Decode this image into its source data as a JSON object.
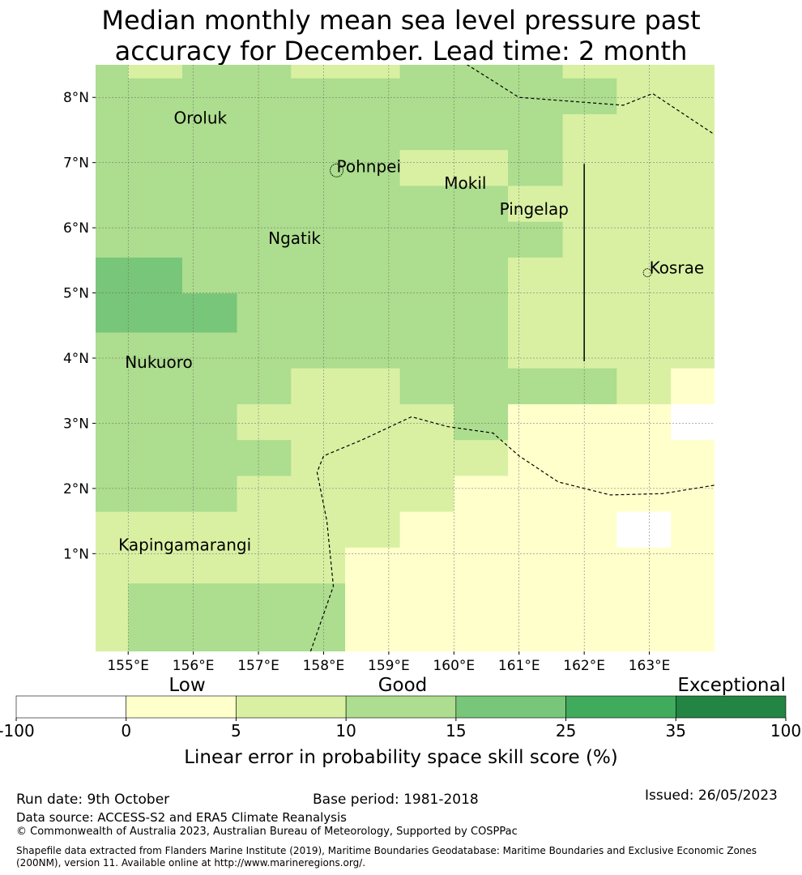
{
  "title": {
    "line1": "Median monthly mean sea level pressure past",
    "line2": "accuracy for December. Lead time: 2 month"
  },
  "map": {
    "lon_min": 154.5,
    "lon_max": 164.0,
    "lat_min": -0.5,
    "lat_max": 8.5,
    "lon_ticks": [
      155,
      156,
      157,
      158,
      159,
      160,
      161,
      162,
      163
    ],
    "lon_tick_labels": [
      "155°E",
      "156°E",
      "157°E",
      "158°E",
      "159°E",
      "160°E",
      "161°E",
      "162°E",
      "163°E"
    ],
    "lat_ticks": [
      1,
      2,
      3,
      4,
      5,
      6,
      7,
      8
    ],
    "lat_tick_labels": [
      "1°N",
      "2°N",
      "3°N",
      "4°N",
      "5°N",
      "6°N",
      "7°N",
      "8°N"
    ],
    "grid_lon_edges": [
      154.5,
      155.0,
      155.83,
      156.67,
      157.5,
      158.33,
      159.17,
      160.0,
      160.83,
      161.67,
      162.5,
      163.33,
      164.0
    ],
    "grid_lat_edges": [
      -0.5,
      0.55,
      1.1,
      1.65,
      2.2,
      2.75,
      3.3,
      3.85,
      4.4,
      5.0,
      5.55,
      6.1,
      6.65,
      7.2,
      7.75,
      8.3,
      8.5
    ],
    "cell_classes": [
      [
        2,
        3,
        3,
        3,
        3,
        1,
        1,
        1,
        1,
        1,
        1,
        1
      ],
      [
        2,
        2,
        2,
        2,
        2,
        1,
        1,
        1,
        1,
        1,
        1,
        1
      ],
      [
        2,
        2,
        2,
        2,
        2,
        2,
        1,
        1,
        1,
        1,
        0,
        1
      ],
      [
        3,
        3,
        3,
        2,
        2,
        2,
        2,
        1,
        1,
        1,
        1,
        1
      ],
      [
        3,
        3,
        3,
        3,
        2,
        2,
        2,
        2,
        1,
        1,
        1,
        1
      ],
      [
        3,
        3,
        3,
        2,
        2,
        2,
        2,
        3,
        1,
        1,
        1,
        0
      ],
      [
        3,
        3,
        3,
        3,
        2,
        2,
        3,
        3,
        3,
        3,
        2,
        1
      ],
      [
        3,
        3,
        3,
        3,
        3,
        3,
        3,
        3,
        2,
        2,
        2,
        2
      ],
      [
        4,
        4,
        4,
        3,
        3,
        3,
        3,
        3,
        2,
        2,
        2,
        2
      ],
      [
        4,
        4,
        3,
        3,
        3,
        3,
        3,
        3,
        2,
        2,
        2,
        2
      ],
      [
        3,
        3,
        3,
        3,
        3,
        3,
        3,
        3,
        3,
        2,
        2,
        2
      ],
      [
        3,
        3,
        3,
        3,
        3,
        3,
        3,
        3,
        2,
        2,
        2,
        2
      ],
      [
        3,
        3,
        3,
        3,
        3,
        3,
        2,
        2,
        3,
        2,
        2,
        2
      ],
      [
        3,
        3,
        3,
        3,
        3,
        3,
        3,
        3,
        3,
        2,
        2,
        2
      ],
      [
        3,
        3,
        3,
        3,
        3,
        3,
        3,
        3,
        3,
        3,
        2,
        2
      ],
      [
        3,
        2,
        3,
        3,
        2,
        2,
        3,
        3,
        3,
        2,
        2,
        2
      ]
    ],
    "places": [
      {
        "name": "Oroluk",
        "lon": 155.7,
        "lat": 7.6
      },
      {
        "name": "Pohnpei",
        "lon": 158.2,
        "lat": 6.85
      },
      {
        "name": "Mokil",
        "lon": 159.85,
        "lat": 6.6
      },
      {
        "name": "Pingelap",
        "lon": 160.7,
        "lat": 6.2
      },
      {
        "name": "Ngatik",
        "lon": 157.15,
        "lat": 5.75
      },
      {
        "name": "Kosrae",
        "lon": 163.0,
        "lat": 5.3
      },
      {
        "name": "Nukuoro",
        "lon": 154.95,
        "lat": 3.85
      },
      {
        "name": "Kapingamarangi",
        "lon": 154.85,
        "lat": 1.05
      }
    ],
    "boundaries": [
      [
        [
          160.05,
          8.6
        ],
        [
          161.0,
          8.0
        ],
        [
          162.6,
          7.88
        ],
        [
          163.05,
          8.06
        ],
        [
          164.0,
          7.43
        ]
      ],
      [
        [
          157.8,
          -0.5
        ],
        [
          158.15,
          0.5
        ],
        [
          158.05,
          1.5
        ],
        [
          157.9,
          2.25
        ],
        [
          158.0,
          2.5
        ],
        [
          158.6,
          2.75
        ],
        [
          159.35,
          3.1
        ],
        [
          159.9,
          2.95
        ],
        [
          160.6,
          2.85
        ],
        [
          161.0,
          2.5
        ],
        [
          161.6,
          2.1
        ],
        [
          162.4,
          1.9
        ],
        [
          163.2,
          1.92
        ],
        [
          164.0,
          2.05
        ]
      ]
    ],
    "vertical_line": {
      "lon": 162.0,
      "lat_from": 3.95,
      "lat_to": 6.98
    },
    "islands": [
      {
        "name": "Pohnpei",
        "lon": 158.2,
        "lat": 6.88
      },
      {
        "name": "Kosrae",
        "lon": 162.97,
        "lat": 5.31
      }
    ]
  },
  "colorbar": {
    "class_colors": [
      "#ffffff",
      "#ffffcc",
      "#d9f0a3",
      "#addd8e",
      "#78c679",
      "#41ab5d",
      "#238443"
    ],
    "tick_labels": [
      "-100",
      "0",
      "5",
      "10",
      "15",
      "25",
      "35",
      "100"
    ],
    "category_labels": [
      "Low",
      "Good",
      "Exceptional"
    ],
    "label": "Linear error in probability space skill score (%)"
  },
  "footer": {
    "run_date": "Run date: 9th October",
    "base_period": "Base period: 1981-2018",
    "issued": "Issued: 26/05/2023",
    "data_source": "Data source: ACCESS-S2 and ERA5 Climate Reanalysis",
    "copyright": "© Commonwealth of Australia 2023, Australian Bureau of Meteorology, Supported by COSPPac",
    "shapefile": "Shapefile data extracted from Flanders Marine Institute (2019), Maritime Boundaries Geodatabase: Maritime Boundaries and Exclusive Economic Zones (200NM), version 11. Available online at http://www.marineregions.org/."
  }
}
